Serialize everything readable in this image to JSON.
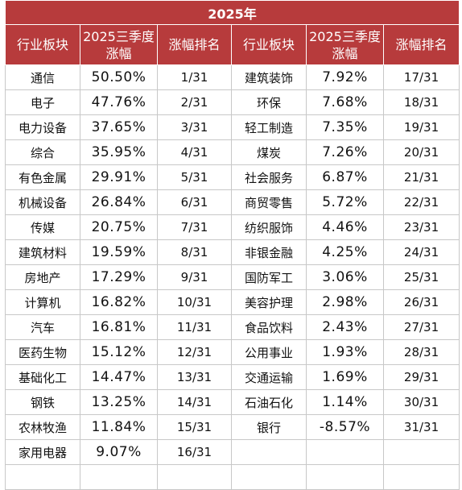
{
  "title": "2025年",
  "headers": {
    "sector": "行业板块",
    "change_line1": "2025三季度",
    "change_line2": "涨幅",
    "rank": "涨幅排名"
  },
  "left": [
    {
      "sector": "通信",
      "change": "50.50%",
      "rank": "1/31"
    },
    {
      "sector": "电子",
      "change": "47.76%",
      "rank": "2/31"
    },
    {
      "sector": "电力设备",
      "change": "37.65%",
      "rank": "3/31"
    },
    {
      "sector": "综合",
      "change": "35.95%",
      "rank": "4/31"
    },
    {
      "sector": "有色金属",
      "change": "29.91%",
      "rank": "5/31"
    },
    {
      "sector": "机械设备",
      "change": "26.84%",
      "rank": "6/31"
    },
    {
      "sector": "传媒",
      "change": "20.75%",
      "rank": "7/31"
    },
    {
      "sector": "建筑材料",
      "change": "19.59%",
      "rank": "8/31"
    },
    {
      "sector": "房地产",
      "change": "17.29%",
      "rank": "9/31"
    },
    {
      "sector": "计算机",
      "change": "16.82%",
      "rank": "10/31"
    },
    {
      "sector": "汽车",
      "change": "16.81%",
      "rank": "11/31"
    },
    {
      "sector": "医药生物",
      "change": "15.12%",
      "rank": "12/31"
    },
    {
      "sector": "基础化工",
      "change": "14.47%",
      "rank": "13/31"
    },
    {
      "sector": "钢铁",
      "change": "13.25%",
      "rank": "14/31"
    },
    {
      "sector": "农林牧渔",
      "change": "11.84%",
      "rank": "15/31"
    },
    {
      "sector": "家用电器",
      "change": "9.07%",
      "rank": "16/31"
    }
  ],
  "right": [
    {
      "sector": "建筑装饰",
      "change": "7.92%",
      "rank": "17/31"
    },
    {
      "sector": "环保",
      "change": "7.68%",
      "rank": "18/31"
    },
    {
      "sector": "轻工制造",
      "change": "7.35%",
      "rank": "19/31"
    },
    {
      "sector": "煤炭",
      "change": "7.26%",
      "rank": "20/31"
    },
    {
      "sector": "社会服务",
      "change": "6.87%",
      "rank": "21/31"
    },
    {
      "sector": "商贸零售",
      "change": "5.72%",
      "rank": "22/31"
    },
    {
      "sector": "纺织服饰",
      "change": "4.46%",
      "rank": "23/31"
    },
    {
      "sector": "非银金融",
      "change": "4.25%",
      "rank": "24/31"
    },
    {
      "sector": "国防军工",
      "change": "3.06%",
      "rank": "25/31"
    },
    {
      "sector": "美容护理",
      "change": "2.98%",
      "rank": "26/31"
    },
    {
      "sector": "食品饮料",
      "change": "2.43%",
      "rank": "27/31"
    },
    {
      "sector": "公用事业",
      "change": "1.93%",
      "rank": "28/31"
    },
    {
      "sector": "交通运输",
      "change": "1.69%",
      "rank": "29/31"
    },
    {
      "sector": "石油石化",
      "change": "1.14%",
      "rank": "30/31"
    },
    {
      "sector": "银行",
      "change": "-8.57%",
      "rank": "31/31"
    }
  ],
  "colors": {
    "header_bg": "#b73b3c",
    "header_text": "#ffffff",
    "grid_line": "#c8c8c8"
  }
}
